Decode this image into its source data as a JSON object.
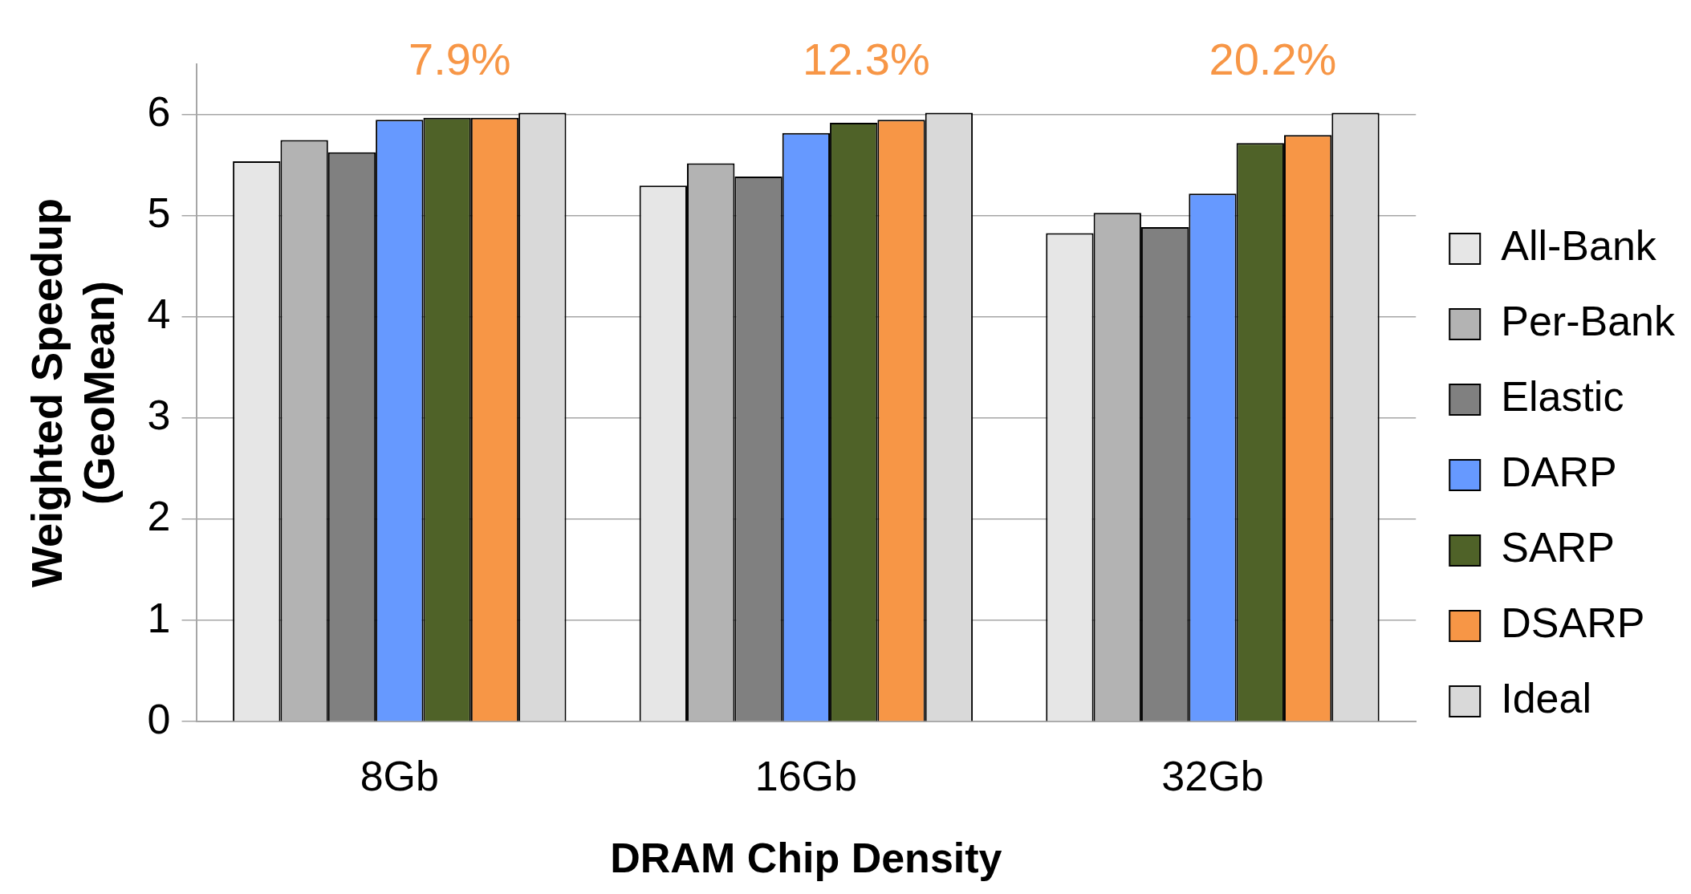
{
  "chart_data": {
    "type": "bar",
    "xlabel": "DRAM Chip Density",
    "ylabel": "Weighted Speedup (GeoMean)",
    "categories": [
      "8Gb",
      "16Gb",
      "32Gb"
    ],
    "series": [
      {
        "name": "All-Bank",
        "color": "#e6e6e6",
        "values": [
          5.54,
          5.3,
          4.83
        ]
      },
      {
        "name": "Per-Bank",
        "color": "#b3b3b3",
        "values": [
          5.75,
          5.52,
          5.03
        ]
      },
      {
        "name": "Elastic",
        "color": "#808080",
        "values": [
          5.63,
          5.39,
          4.89
        ]
      },
      {
        "name": "DARP",
        "color": "#6699ff",
        "values": [
          5.95,
          5.82,
          5.22
        ]
      },
      {
        "name": "SARP",
        "color": "#4f6228",
        "values": [
          5.97,
          5.92,
          5.72
        ]
      },
      {
        "name": "DSARP",
        "color": "#f79646",
        "values": [
          5.97,
          5.95,
          5.8
        ]
      },
      {
        "name": "Ideal",
        "color": "#d9d9d9",
        "values": [
          6.02,
          6.02,
          6.02
        ]
      }
    ],
    "ylim": [
      0,
      6.5
    ],
    "yticks": [
      0,
      1,
      2,
      3,
      4,
      5,
      6
    ],
    "grid": "y",
    "legend": "right",
    "annotations": [
      "7.9%",
      "12.3%",
      "20.2%"
    ]
  }
}
